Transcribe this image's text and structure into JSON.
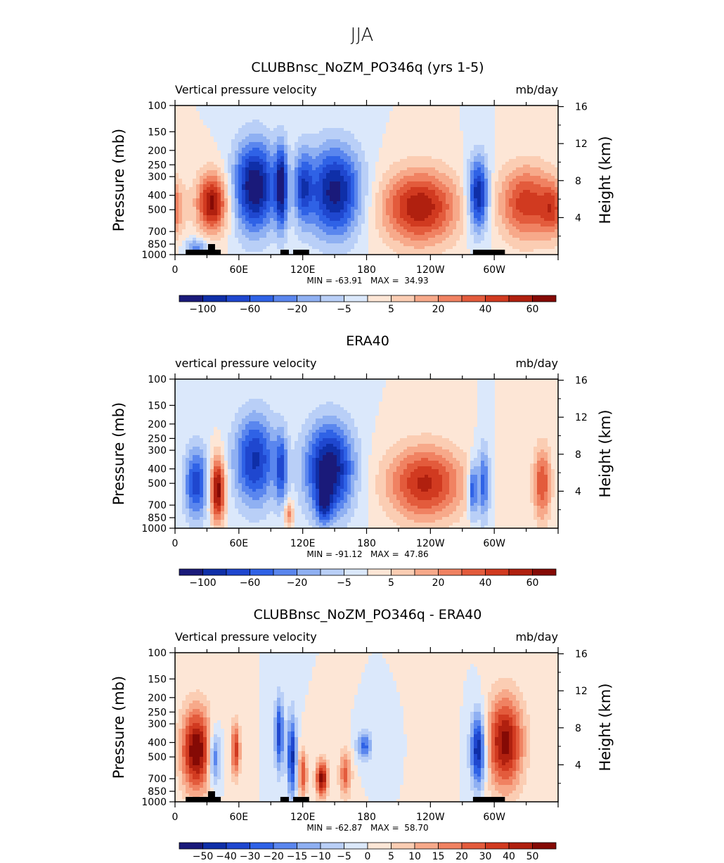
{
  "page_title": "JJA",
  "colors": {
    "cool": [
      "#1a1a7a",
      "#0f2fa8",
      "#1f47cf",
      "#2f62e6",
      "#5a86ee",
      "#8fb0f2",
      "#b9cff7",
      "#dbe8fb"
    ],
    "warm": [
      "#fde6d6",
      "#fbcdb3",
      "#f7a98a",
      "#f08262",
      "#e35b3c",
      "#d13a20",
      "#b0200f",
      "#850a05"
    ]
  },
  "chart_data": [
    {
      "type": "heatmap",
      "id": "model",
      "title": "CLUBBnsc_NoZM_PO346q (yrs 1-5)",
      "subtitle_left": "Vertical pressure velocity",
      "subtitle_right": "mb/day",
      "ylabel": "Pressure (mb)",
      "ylabel_right": "Height (km)",
      "y_ticks": [
        "100",
        "150",
        "200",
        "250",
        "300",
        "400",
        "500",
        "700",
        "850",
        "1000"
      ],
      "y_right_ticks": [
        "16",
        "12",
        "8",
        "4"
      ],
      "x_ticks": [
        "0",
        "60E",
        "120E",
        "180",
        "120W",
        "60W"
      ],
      "stats": "MIN = -63.91   MAX =  34.93",
      "colorbar_labels": [
        "-100",
        "-60",
        "-20",
        "-5",
        "5",
        "20",
        "40",
        "60"
      ],
      "land_bars": true,
      "blobs": [
        {
          "lon": 35,
          "p": 450,
          "s": -6.0,
          "wl": 10,
          "wp": 3.2
        },
        {
          "lon": 20,
          "p": 900,
          "s": 3.0,
          "wl": 8,
          "wp": 1.0
        },
        {
          "lon": 75,
          "p": 350,
          "s": 6.5,
          "wl": 14,
          "wp": 5.0
        },
        {
          "lon": 100,
          "p": 350,
          "s": 5.5,
          "wl": 4,
          "wp": 4.5
        },
        {
          "lon": 120,
          "p": 350,
          "s": 3.5,
          "wl": 6,
          "wp": 4.0
        },
        {
          "lon": 150,
          "p": 380,
          "s": 6.0,
          "wl": 18,
          "wp": 5.0
        },
        {
          "lon": 230,
          "p": 480,
          "s": -5.5,
          "wl": 25,
          "wp": 4.0
        },
        {
          "lon": 285,
          "p": 400,
          "s": 6.0,
          "wl": 7,
          "wp": 4.0
        },
        {
          "lon": 330,
          "p": 450,
          "s": -4.5,
          "wl": 18,
          "wp": 4.0
        },
        {
          "lon": 355,
          "p": 500,
          "s": -3.0,
          "wl": 8,
          "wp": 3.0
        }
      ]
    },
    {
      "type": "heatmap",
      "id": "era40",
      "title": "ERA40",
      "subtitle_left": "vertical pressure velocity",
      "subtitle_right": "mb/day",
      "ylabel": "Pressure (mb)",
      "ylabel_right": "Height (km)",
      "y_ticks": [
        "100",
        "150",
        "200",
        "250",
        "300",
        "400",
        "500",
        "700",
        "850",
        "1000"
      ],
      "y_right_ticks": [
        "16",
        "12",
        "8",
        "4"
      ],
      "x_ticks": [
        "0",
        "60E",
        "120E",
        "180",
        "120W",
        "60W"
      ],
      "stats": "MIN = -91.12   MAX =  47.86",
      "colorbar_labels": [
        "-100",
        "-60",
        "-20",
        "-5",
        "5",
        "20",
        "40",
        "60"
      ],
      "land_bars": false,
      "blobs": [
        {
          "lon": 20,
          "p": 500,
          "s": 4.5,
          "wl": 8,
          "wp": 4.0
        },
        {
          "lon": 40,
          "p": 550,
          "s": -6.5,
          "wl": 5,
          "wp": 3.5
        },
        {
          "lon": 75,
          "p": 350,
          "s": 5.0,
          "wl": 14,
          "wp": 5.0
        },
        {
          "lon": 100,
          "p": 400,
          "s": 3.5,
          "wl": 4,
          "wp": 4.0
        },
        {
          "lon": 107,
          "p": 800,
          "s": -3.0,
          "wl": 3,
          "wp": 1.5
        },
        {
          "lon": 145,
          "p": 400,
          "s": 6.5,
          "wl": 16,
          "wp": 5.0
        },
        {
          "lon": 140,
          "p": 700,
          "s": 3.0,
          "wl": 5,
          "wp": 2.0
        },
        {
          "lon": 235,
          "p": 500,
          "s": -5.0,
          "wl": 25,
          "wp": 4.0
        },
        {
          "lon": 280,
          "p": 550,
          "s": 4.5,
          "wl": 3,
          "wp": 3.0
        },
        {
          "lon": 290,
          "p": 500,
          "s": 4.0,
          "wl": 4,
          "wp": 4.0
        },
        {
          "lon": 345,
          "p": 500,
          "s": -4.0,
          "wl": 6,
          "wp": 4.0
        }
      ]
    },
    {
      "type": "heatmap",
      "id": "diff",
      "title": "CLUBBnsc_NoZM_PO346q - ERA40",
      "subtitle_left": "Vertical pressure velocity",
      "subtitle_right": "mb/day",
      "ylabel": "Pressure (mb)",
      "ylabel_right": "Height (km)",
      "y_ticks": [
        "100",
        "150",
        "200",
        "250",
        "300",
        "400",
        "500",
        "700",
        "850",
        "1000"
      ],
      "y_right_ticks": [
        "16",
        "12",
        "8",
        "4"
      ],
      "x_ticks": [
        "0",
        "60E",
        "120E",
        "180",
        "120W",
        "60W"
      ],
      "stats": "MIN = -62.87   MAX =  58.70",
      "colorbar_labels": [
        "-50",
        "-40",
        "-30",
        "-20",
        "-15",
        "-10",
        "-5",
        "0",
        "5",
        "10",
        "15",
        "20",
        "30",
        "40",
        "50"
      ],
      "land_bars": true,
      "blobs": [
        {
          "lon": 20,
          "p": 450,
          "s": -6.5,
          "wl": 10,
          "wp": 4.5
        },
        {
          "lon": 37,
          "p": 500,
          "s": 4.0,
          "wl": 4,
          "wp": 3.0
        },
        {
          "lon": 57,
          "p": 450,
          "s": -4.5,
          "wl": 3,
          "wp": 3.0
        },
        {
          "lon": 98,
          "p": 350,
          "s": 4.5,
          "wl": 3,
          "wp": 4.0
        },
        {
          "lon": 110,
          "p": 500,
          "s": 5.0,
          "wl": 3,
          "wp": 4.5
        },
        {
          "lon": 120,
          "p": 650,
          "s": -4.0,
          "wl": 3,
          "wp": 2.5
        },
        {
          "lon": 138,
          "p": 700,
          "s": -6.0,
          "wl": 4,
          "wp": 2.0
        },
        {
          "lon": 160,
          "p": 650,
          "s": -3.5,
          "wl": 4,
          "wp": 2.5
        },
        {
          "lon": 178,
          "p": 420,
          "s": 3.5,
          "wl": 5,
          "wp": 1.5
        },
        {
          "lon": 285,
          "p": 450,
          "s": 6.0,
          "wl": 5,
          "wp": 4.0
        },
        {
          "lon": 310,
          "p": 400,
          "s": -6.0,
          "wl": 12,
          "wp": 5.0
        }
      ]
    }
  ]
}
